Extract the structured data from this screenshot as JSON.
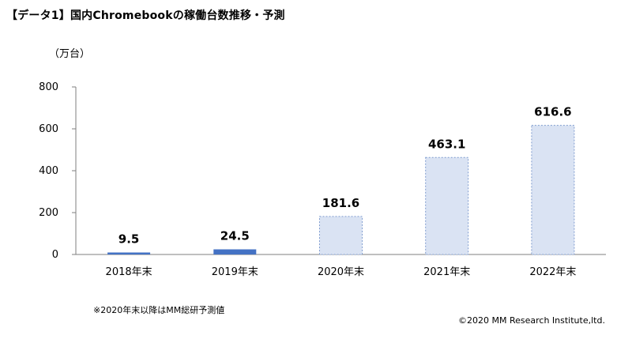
{
  "header": {
    "title": "【データ1】国内Chromebookの稼働台数推移・予測",
    "unit": "（万台）"
  },
  "footer": {
    "note": "※2020年末以降はMM総研予測値",
    "copyright": "©2020  MM Research Institute,ltd."
  },
  "chart_data": {
    "type": "bar",
    "title": "【データ1】国内Chromebookの稼働台数推移・予測",
    "ylabel": "（万台）",
    "xlabel": "",
    "categories": [
      "2018年末",
      "2019年末",
      "2020年末",
      "2021年末",
      "2022年末"
    ],
    "values": [
      9.5,
      24.5,
      181.6,
      463.1,
      616.6
    ],
    "data_labels": [
      "9.5",
      "24.5",
      "181.6",
      "463.1",
      "616.6"
    ],
    "forecast": [
      false,
      false,
      true,
      true,
      true
    ],
    "ylim": [
      0,
      800
    ],
    "yticks": [
      0,
      200,
      400,
      600,
      800
    ],
    "ytick_labels": [
      "0",
      "200",
      "400",
      "600",
      "800"
    ],
    "grid": false,
    "legend": "none",
    "colors": {
      "actual_fill": "#4472c4",
      "forecast_fill": "#dae3f3",
      "forecast_stroke": "#7f9ccf",
      "axis": "#7f7f7f"
    }
  }
}
